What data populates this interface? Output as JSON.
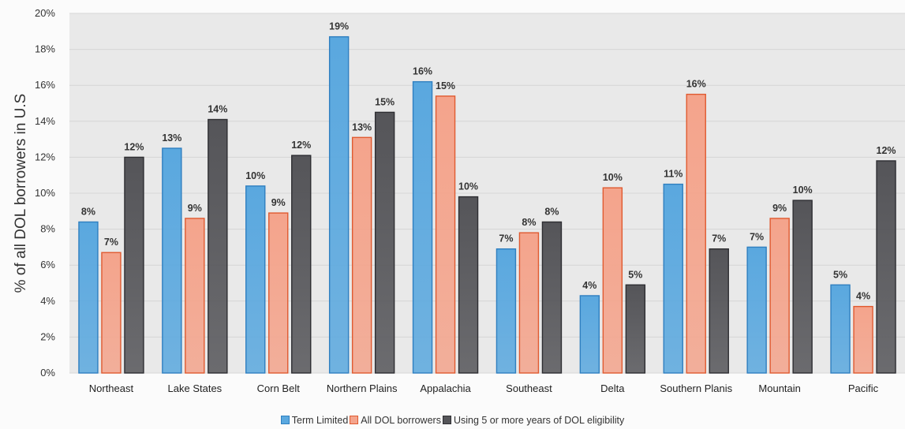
{
  "chart_data": {
    "type": "bar",
    "ylabel": "% of all DOL borrowers in U.S",
    "ylim": [
      0,
      20
    ],
    "yticks": [
      "0%",
      "2%",
      "4%",
      "6%",
      "8%",
      "10%",
      "12%",
      "14%",
      "16%",
      "18%",
      "20%"
    ],
    "categories": [
      "Northeast",
      "Lake States",
      "Corn Belt",
      "Northern Plains",
      "Appalachia",
      "Southeast",
      "Delta",
      "Southern Planis",
      "Mountain",
      "Pacific"
    ],
    "series": [
      {
        "name": "Term Limited",
        "values": [
          8.4,
          12.5,
          10.4,
          18.7,
          16.2,
          6.9,
          4.3,
          10.5,
          7.0,
          4.9
        ],
        "labels": [
          "8%",
          "13%",
          "10%",
          "19%",
          "16%",
          "7%",
          "4%",
          "11%",
          "7%",
          "5%"
        ],
        "color": "#5aa8df",
        "stroke": "#2f7fc0"
      },
      {
        "name": "All DOL borrowers",
        "values": [
          6.7,
          8.6,
          8.9,
          13.1,
          15.4,
          7.8,
          10.3,
          15.5,
          8.6,
          3.7
        ],
        "labels": [
          "7%",
          "9%",
          "9%",
          "13%",
          "15%",
          "8%",
          "10%",
          "16%",
          "9%",
          "4%"
        ],
        "color": "#f4a48c",
        "stroke": "#e05a30"
      },
      {
        "name": "Using 5 or more years of DOL eligibility",
        "values": [
          12.0,
          14.1,
          12.1,
          14.5,
          9.8,
          8.4,
          4.9,
          6.9,
          9.6,
          11.8
        ],
        "labels": [
          "12%",
          "14%",
          "12%",
          "15%",
          "10%",
          "8%",
          "5%",
          "7%",
          "10%",
          "12%"
        ],
        "color": "#555559",
        "stroke": "#2e2e32"
      }
    ],
    "grid": true,
    "legend_position": "bottom"
  }
}
